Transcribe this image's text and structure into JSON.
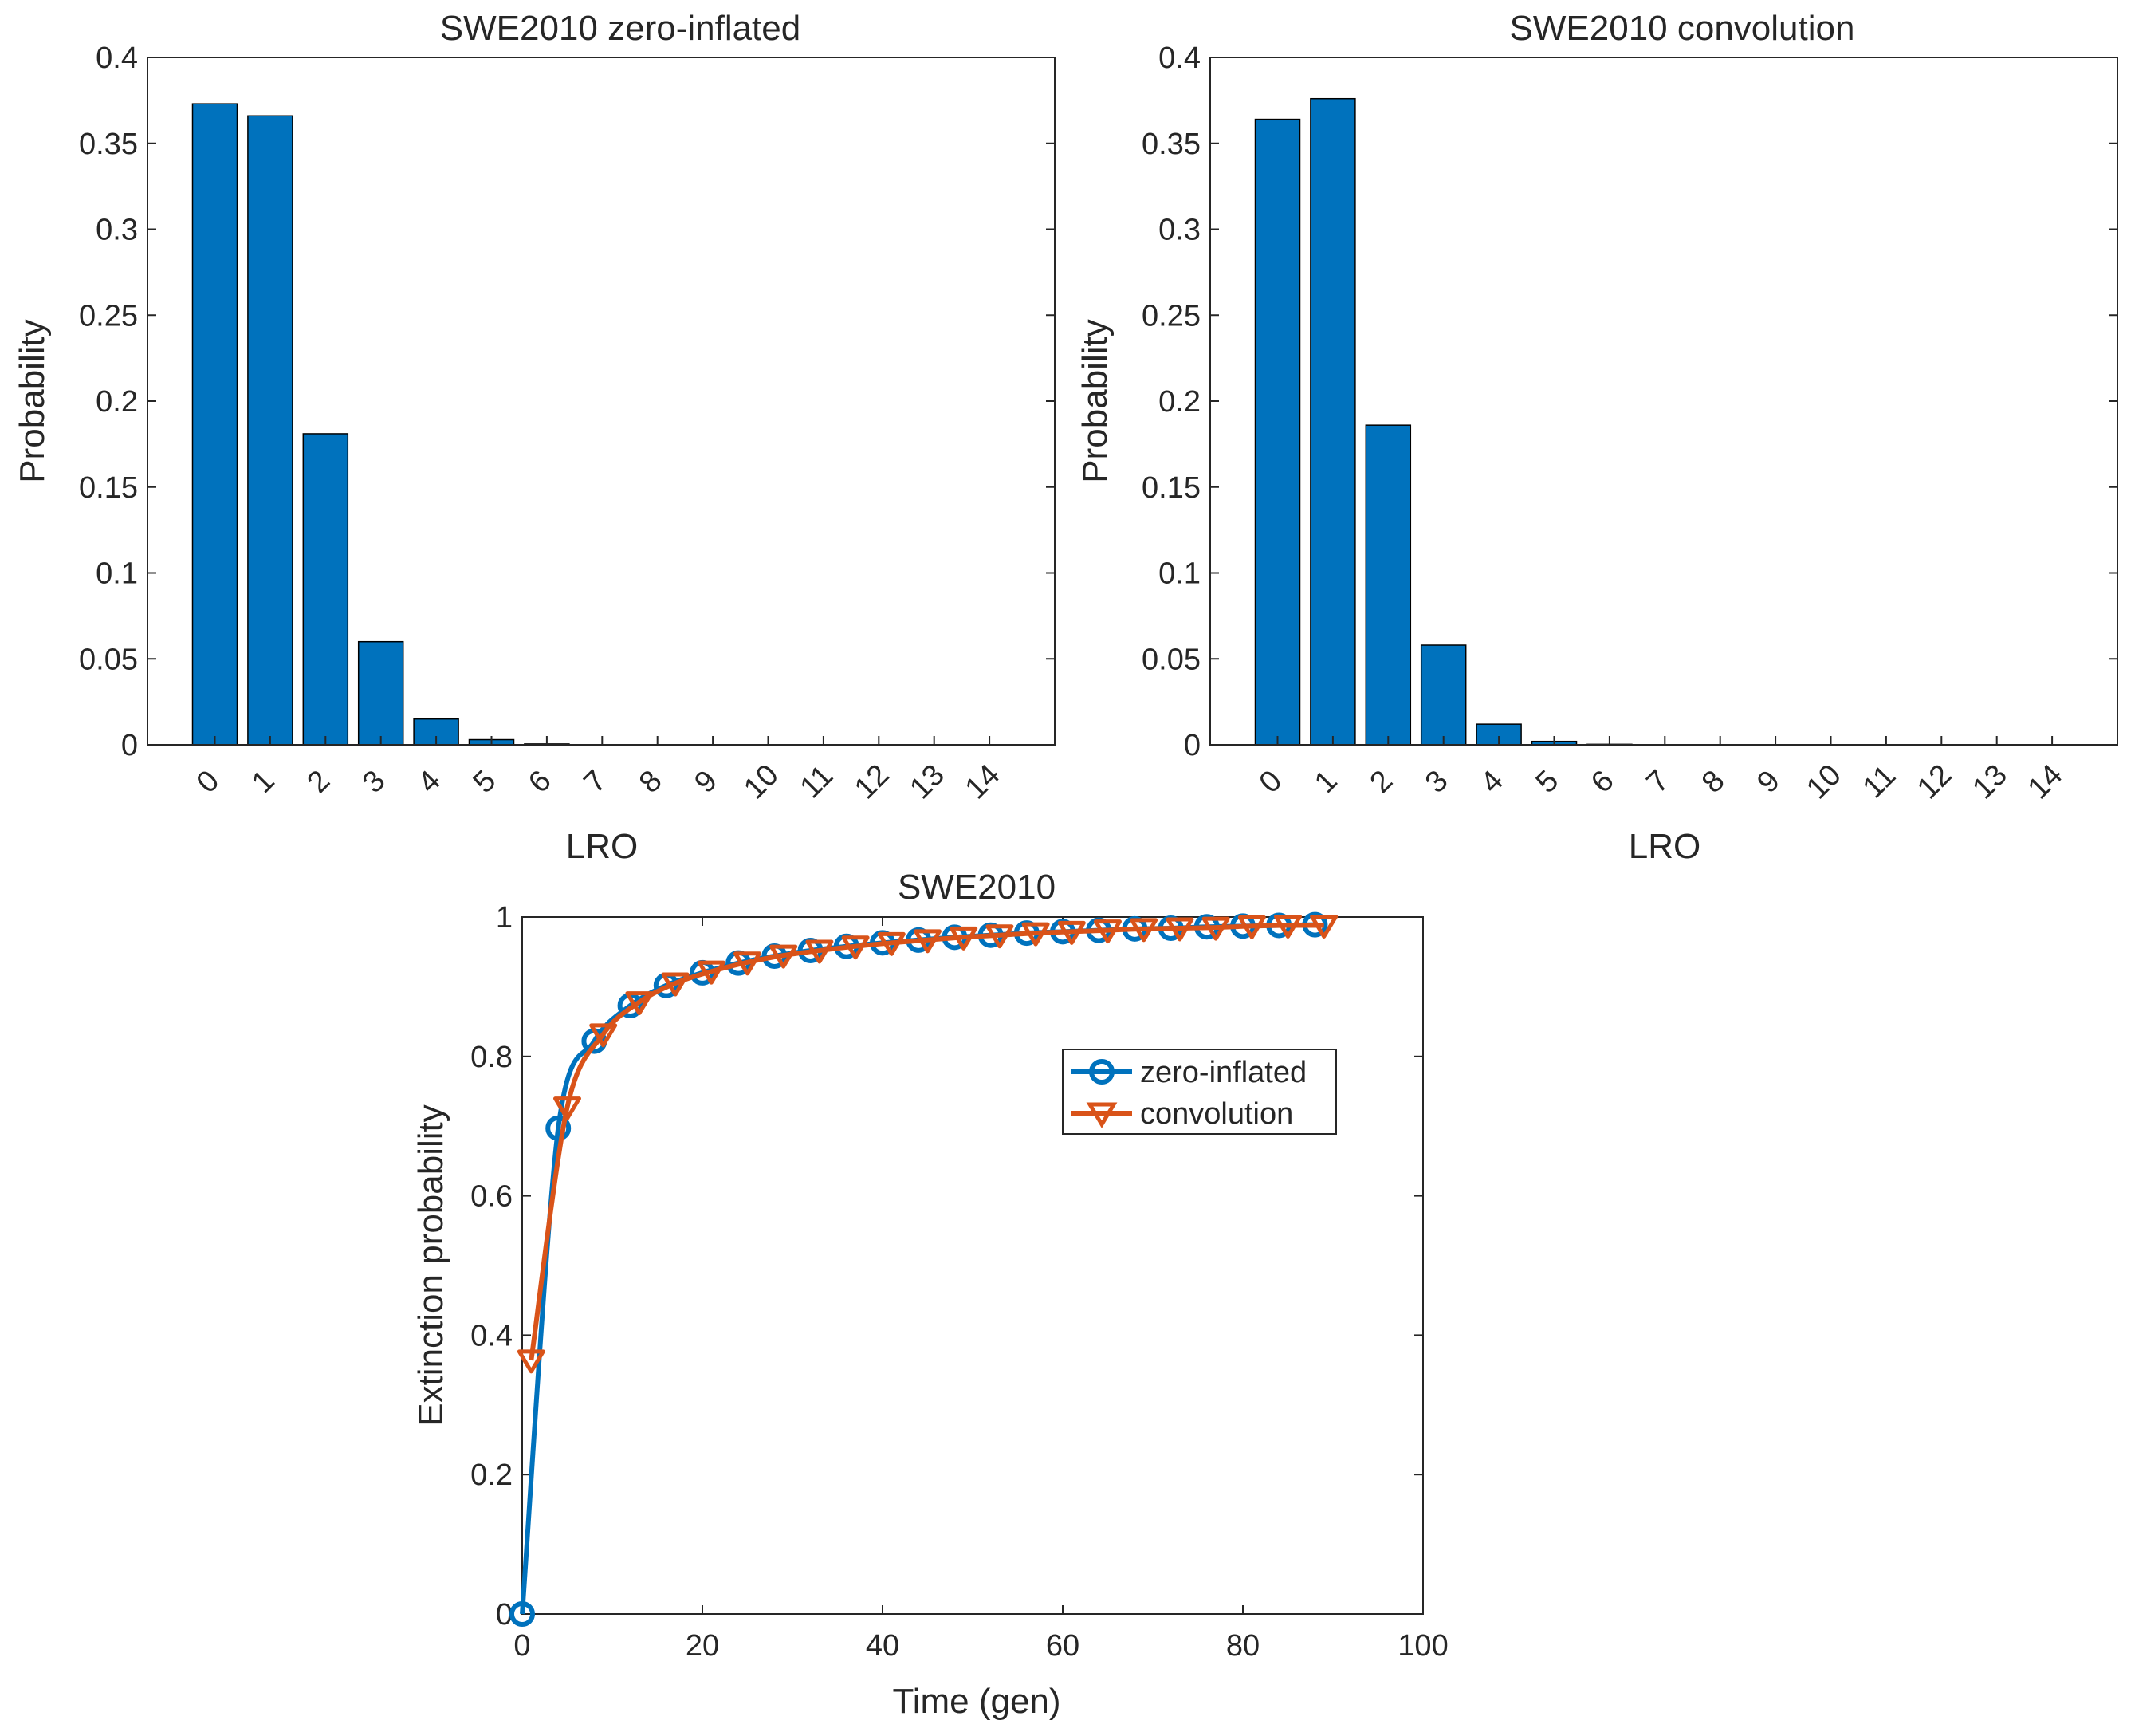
{
  "colors": {
    "bar": "#0072BD",
    "series1": "#0072BD",
    "series2": "#D95319",
    "axis": "#262626"
  },
  "chart_data": [
    {
      "type": "bar",
      "title": "SWE2010 zero-inflated",
      "xlabel": "LRO",
      "ylabel": "Probability",
      "categories": [
        "0",
        "1",
        "2",
        "3",
        "4",
        "5",
        "6",
        "7",
        "8",
        "9",
        "10",
        "11",
        "12",
        "13",
        "14"
      ],
      "values": [
        0.373,
        0.366,
        0.181,
        0.06,
        0.015,
        0.003,
        0.0005,
        0,
        0,
        0,
        0,
        0,
        0,
        0,
        0
      ],
      "ylim": [
        0,
        0.4
      ],
      "yticks": [
        "0",
        "0.05",
        "0.1",
        "0.15",
        "0.2",
        "0.25",
        "0.3",
        "0.35",
        "0.4"
      ]
    },
    {
      "type": "bar",
      "title": "SWE2010 convolution",
      "xlabel": "LRO",
      "ylabel": "Probability",
      "categories": [
        "0",
        "1",
        "2",
        "3",
        "4",
        "5",
        "6",
        "7",
        "8",
        "9",
        "10",
        "11",
        "12",
        "13",
        "14"
      ],
      "values": [
        0.364,
        0.376,
        0.186,
        0.058,
        0.012,
        0.002,
        0.0003,
        0,
        0,
        0,
        0,
        0,
        0,
        0,
        0
      ],
      "ylim": [
        0,
        0.4
      ],
      "yticks": [
        "0",
        "0.05",
        "0.1",
        "0.15",
        "0.2",
        "0.25",
        "0.3",
        "0.35",
        "0.4"
      ]
    },
    {
      "type": "line",
      "title": "SWE2010",
      "xlabel": "Time (gen)",
      "ylabel": "Extinction probability",
      "xlim": [
        0,
        100
      ],
      "ylim": [
        0,
        1
      ],
      "xticks": [
        "0",
        "20",
        "40",
        "60",
        "80",
        "100"
      ],
      "yticks": [
        "0",
        "0.2",
        "0.4",
        "0.6",
        "0.8",
        "1"
      ],
      "legend_position": "upper-right-inside",
      "series": [
        {
          "name": "zero-inflated",
          "marker": "circle",
          "x": [
            0,
            4,
            8,
            12,
            16,
            20,
            24,
            28,
            32,
            36,
            40,
            44,
            48,
            52,
            56,
            60,
            64,
            68,
            72,
            76,
            80,
            84,
            88
          ],
          "y": [
            0,
            0.697,
            0.822,
            0.873,
            0.902,
            0.92,
            0.934,
            0.944,
            0.952,
            0.958,
            0.963,
            0.967,
            0.971,
            0.974,
            0.977,
            0.979,
            0.981,
            0.983,
            0.984,
            0.986,
            0.987,
            0.988,
            0.989
          ]
        },
        {
          "name": "convolution",
          "marker": "triangle-down",
          "x": [
            1,
            5,
            9,
            13,
            17,
            21,
            25,
            29,
            33,
            37,
            41,
            45,
            49,
            53,
            57,
            61,
            65,
            69,
            73,
            77,
            81,
            85,
            89
          ],
          "y": [
            0.364,
            0.727,
            0.832,
            0.878,
            0.905,
            0.922,
            0.935,
            0.945,
            0.952,
            0.958,
            0.963,
            0.967,
            0.971,
            0.974,
            0.977,
            0.979,
            0.981,
            0.983,
            0.984,
            0.985,
            0.987,
            0.988,
            0.988
          ]
        }
      ]
    }
  ]
}
